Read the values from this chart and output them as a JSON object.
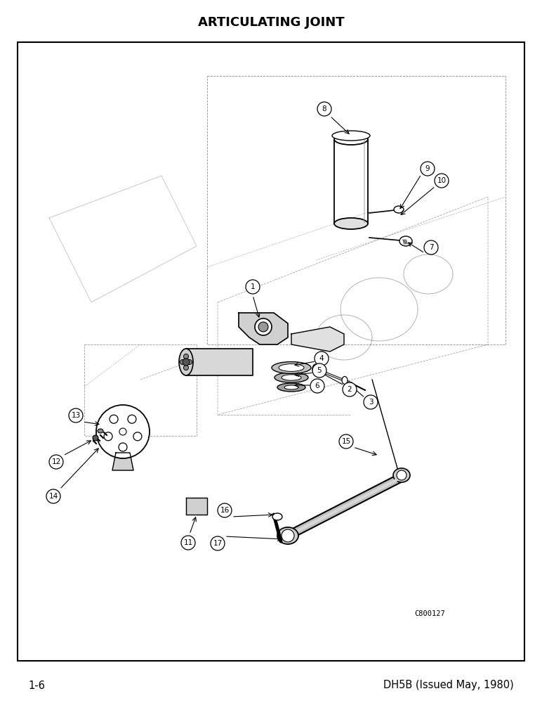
{
  "title": "ARTICULATING JOINT",
  "title_fontsize": 13,
  "title_fontweight": "bold",
  "footer_left": "1-6",
  "footer_right": "DH5B (Issued May, 1980)",
  "footer_fontsize": 10.5,
  "watermark": "C800127",
  "bg_color": "#ffffff",
  "fig_width": 7.72,
  "fig_height": 10.0
}
